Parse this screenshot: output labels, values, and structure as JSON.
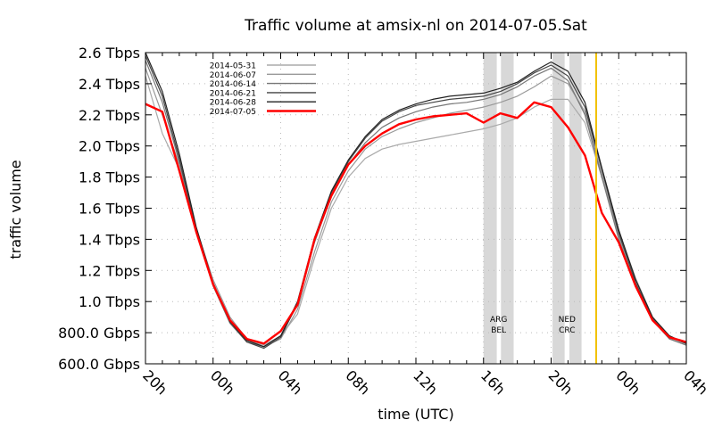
{
  "chart_data": {
    "type": "line",
    "title": "Traffic volume at amsix-nl on 2014-07-05.Sat",
    "xlabel": "time (UTC)",
    "ylabel": "traffic volume",
    "x_unit_note_printed": "",
    "x": [
      "20h",
      "21h",
      "22h",
      "23h",
      "00h",
      "01h",
      "02h",
      "03h",
      "04h",
      "05h",
      "06h",
      "07h",
      "08h",
      "09h",
      "10h",
      "11h",
      "12h",
      "13h",
      "14h",
      "15h",
      "16h",
      "17h",
      "18h",
      "19h",
      "20h",
      "21h",
      "22h",
      "23h",
      "00h",
      "01h",
      "02h",
      "03h",
      "04h"
    ],
    "xticks": [
      "20h",
      "00h",
      "04h",
      "08h",
      "12h",
      "16h",
      "20h",
      "00h",
      "04h"
    ],
    "ylim_tbps": [
      0.6,
      2.6
    ],
    "yticks": [
      {
        "value": 2.6,
        "label": "2.6 Tbps"
      },
      {
        "value": 2.4,
        "label": "2.4 Tbps"
      },
      {
        "value": 2.2,
        "label": "2.2 Tbps"
      },
      {
        "value": 2.0,
        "label": "2.0 Tbps"
      },
      {
        "value": 1.8,
        "label": "1.8 Tbps"
      },
      {
        "value": 1.6,
        "label": "1.6 Tbps"
      },
      {
        "value": 1.4,
        "label": "1.4 Tbps"
      },
      {
        "value": 1.2,
        "label": "1.2 Tbps"
      },
      {
        "value": 1.0,
        "label": "1.0 Tbps"
      },
      {
        "value": 0.8,
        "label": "800.0 Gbps"
      },
      {
        "value": 0.6,
        "label": "600.0 Gbps"
      }
    ],
    "grid": true,
    "legend_position": "top-left",
    "series": [
      {
        "name": "2014-05-31",
        "color": "#aaaaaa",
        "values": [
          2.45,
          2.08,
          1.85,
          1.45,
          1.12,
          0.88,
          0.76,
          0.72,
          0.78,
          0.92,
          1.28,
          1.6,
          1.8,
          1.92,
          1.98,
          2.01,
          2.03,
          2.05,
          2.07,
          2.09,
          2.11,
          2.14,
          2.18,
          2.25,
          2.3,
          2.3,
          2.15,
          1.8,
          1.45,
          1.15,
          0.9,
          0.76,
          0.72
        ]
      },
      {
        "name": "2014-06-07",
        "color": "#999999",
        "values": [
          2.5,
          2.2,
          1.88,
          1.47,
          1.14,
          0.9,
          0.76,
          0.71,
          0.76,
          0.95,
          1.32,
          1.64,
          1.84,
          1.98,
          2.06,
          2.11,
          2.15,
          2.18,
          2.21,
          2.23,
          2.25,
          2.28,
          2.32,
          2.38,
          2.45,
          2.4,
          2.22,
          1.82,
          1.42,
          1.1,
          0.88,
          0.76,
          0.72
        ]
      },
      {
        "name": "2014-06-14",
        "color": "#777777",
        "values": [
          2.55,
          2.28,
          1.9,
          1.45,
          1.1,
          0.86,
          0.74,
          0.71,
          0.78,
          0.98,
          1.38,
          1.68,
          1.88,
          2.02,
          2.12,
          2.18,
          2.22,
          2.25,
          2.27,
          2.28,
          2.3,
          2.33,
          2.38,
          2.45,
          2.5,
          2.42,
          2.2,
          1.8,
          1.4,
          1.1,
          0.88,
          0.76,
          0.72
        ]
      },
      {
        "name": "2014-06-21",
        "color": "#444444",
        "values": [
          2.58,
          2.32,
          1.92,
          1.46,
          1.11,
          0.87,
          0.74,
          0.7,
          0.77,
          0.99,
          1.4,
          1.7,
          1.9,
          2.05,
          2.16,
          2.22,
          2.26,
          2.28,
          2.3,
          2.31,
          2.32,
          2.35,
          2.4,
          2.47,
          2.52,
          2.45,
          2.25,
          1.85,
          1.44,
          1.12,
          0.89,
          0.77,
          0.73
        ]
      },
      {
        "name": "2014-06-28",
        "color": "#222222",
        "values": [
          2.6,
          2.35,
          1.95,
          1.48,
          1.12,
          0.87,
          0.75,
          0.71,
          0.78,
          1.0,
          1.41,
          1.71,
          1.91,
          2.06,
          2.17,
          2.23,
          2.27,
          2.3,
          2.32,
          2.33,
          2.34,
          2.37,
          2.41,
          2.48,
          2.54,
          2.48,
          2.28,
          1.86,
          1.46,
          1.14,
          0.9,
          0.78,
          0.73
        ]
      },
      {
        "name": "2014-07-05",
        "color": "#ff0000",
        "values": [
          2.27,
          2.22,
          1.84,
          1.45,
          1.11,
          0.88,
          0.76,
          0.73,
          0.81,
          0.98,
          1.4,
          1.68,
          1.88,
          2.0,
          2.08,
          2.14,
          2.17,
          2.19,
          2.2,
          2.21,
          2.15,
          2.21,
          2.18,
          2.28,
          2.25,
          2.12,
          1.94,
          1.57,
          1.38,
          1.1,
          0.88,
          0.77,
          0.74
        ]
      }
    ],
    "annotations": [
      {
        "label_lines": [
          "ARG",
          "BEL"
        ],
        "bands": [
          [
            "16:00",
            "16:47"
          ],
          [
            "17:02",
            "17:47"
          ]
        ],
        "color": "#d8d8d8"
      },
      {
        "label_lines": [
          "NED",
          "CRC"
        ],
        "bands": [
          [
            "20:05",
            "20:48"
          ],
          [
            "21:05",
            "21:48"
          ]
        ],
        "color": "#d8d8d8"
      }
    ],
    "marker_line": {
      "time": "22:40",
      "color": "#f2c200"
    }
  }
}
